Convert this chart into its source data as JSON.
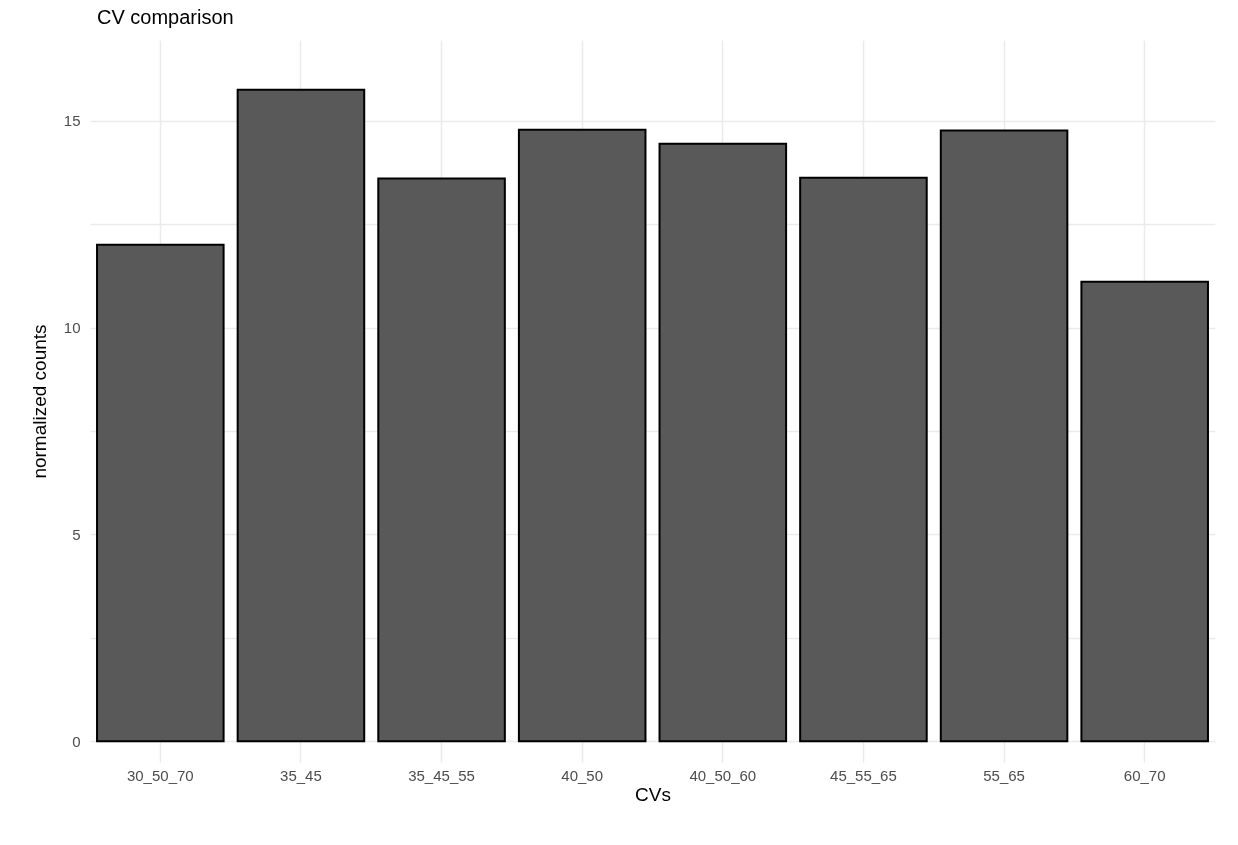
{
  "chart_data": {
    "type": "bar",
    "title": "CV comparison",
    "xlabel": "CVs",
    "ylabel": "normalized counts",
    "categories": [
      "30_50_70",
      "35_45",
      "35_45_55",
      "40_50",
      "40_50_60",
      "45_55_65",
      "55_65",
      "60_70"
    ],
    "values": [
      12.0,
      15.75,
      13.6,
      14.78,
      14.44,
      13.62,
      14.76,
      11.11
    ],
    "color": "#595959",
    "ylim": [
      -0.5,
      16.95
    ],
    "yticks": [
      0,
      {
        "value": 2.5,
        "label": null
      },
      5,
      {
        "value": 7.5,
        "label": null
      },
      10,
      {
        "value": 12.5,
        "label": null
      },
      15
    ],
    "grid": true
  }
}
